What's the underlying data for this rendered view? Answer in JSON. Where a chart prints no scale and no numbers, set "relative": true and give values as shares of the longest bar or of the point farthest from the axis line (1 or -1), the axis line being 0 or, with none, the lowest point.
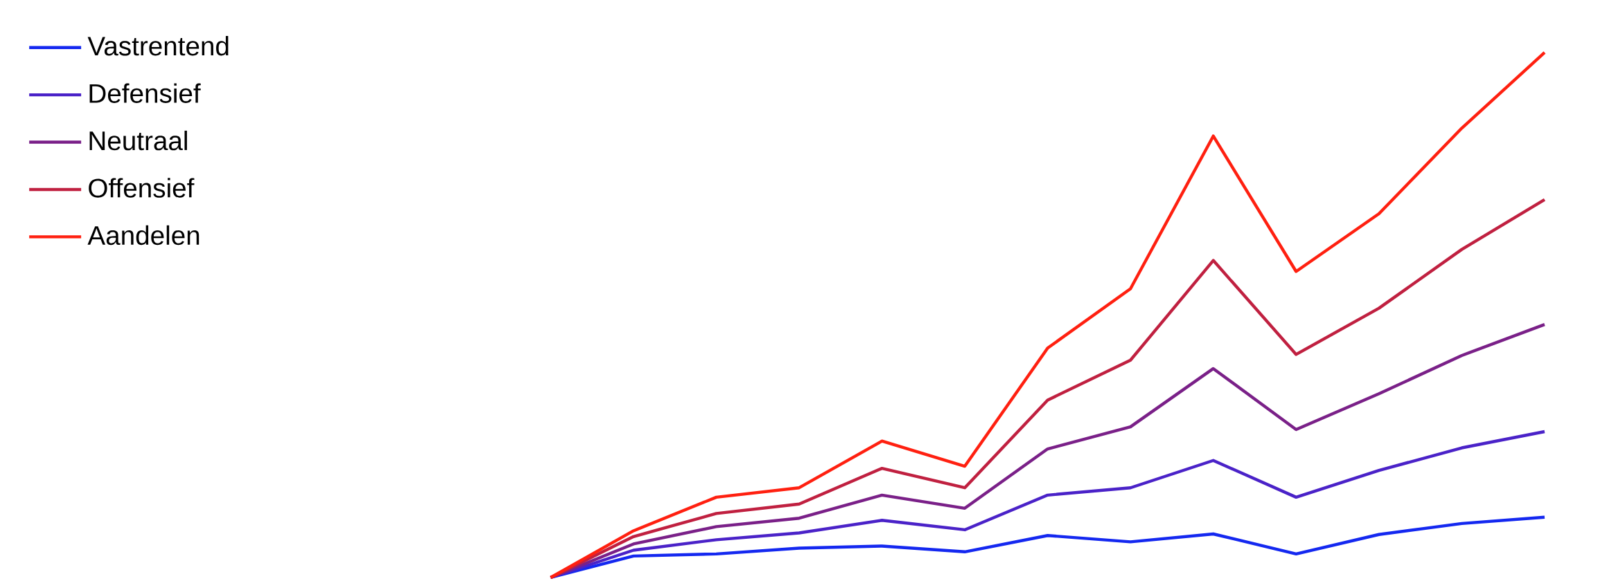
{
  "chart_data": {
    "type": "line",
    "relative": true,
    "legend": "top left",
    "categories": [
      null,
      null,
      null,
      null,
      null,
      null,
      null,
      null,
      null,
      null,
      null,
      null,
      null
    ],
    "series": [
      {
        "name": "Vastrentend",
        "color": "#1428f0",
        "values": [
          0,
          0.041,
          0.045,
          0.056,
          0.06,
          0.049,
          0.08,
          0.068,
          0.083,
          0.045,
          0.082,
          0.103,
          0.115
        ]
      },
      {
        "name": "Defensief",
        "color": "#4a22c8",
        "values": [
          0,
          0.052,
          0.072,
          0.085,
          0.109,
          0.091,
          0.157,
          0.171,
          0.223,
          0.153,
          0.204,
          0.247,
          0.278
        ]
      },
      {
        "name": "Neutraal",
        "color": "#7a2088",
        "values": [
          0,
          0.064,
          0.097,
          0.113,
          0.157,
          0.132,
          0.245,
          0.287,
          0.398,
          0.282,
          0.35,
          0.423,
          0.482
        ]
      },
      {
        "name": "Offensief",
        "color": "#c02040",
        "values": [
          0,
          0.078,
          0.122,
          0.14,
          0.208,
          0.171,
          0.338,
          0.414,
          0.604,
          0.425,
          0.513,
          0.625,
          0.72
        ]
      },
      {
        "name": "Aandelen",
        "color": "#ff2010",
        "values": [
          0,
          0.089,
          0.153,
          0.171,
          0.26,
          0.212,
          0.437,
          0.55,
          0.841,
          0.583,
          0.693,
          0.856,
          1
        ]
      }
    ]
  }
}
